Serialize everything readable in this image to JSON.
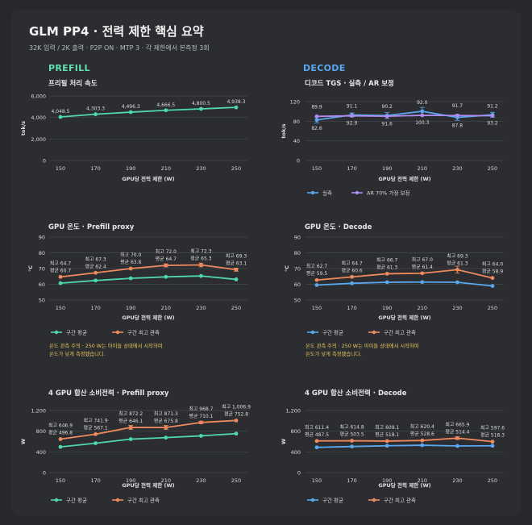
{
  "header": {
    "title": "GLM PP4 · 전력 제한 핵심 요약",
    "subtitle": "32K 입력 / 2K 출력 · P2P ON · MTP 3 · 각 제한에서 본측정 3회",
    "prefill_label": "PREFILL",
    "decode_label": "DECODE"
  },
  "colors": {
    "green": "#4fd8a8",
    "orange": "#f08a5d",
    "blue": "#5aa8f0",
    "purple": "#b08cf0",
    "note": "#e6c65a"
  },
  "chart_data": [
    {
      "type": "line",
      "panel": "prefill-speed",
      "title": "프리필 처리 속도",
      "xlabel": "GPU당 전력 제한 (W)",
      "ylabel": "tok/s",
      "x": [
        150,
        170,
        190,
        210,
        230,
        250
      ],
      "ylim": [
        0,
        6000
      ],
      "yticks": [
        0,
        2000,
        4000,
        6000
      ],
      "ytick_labels": [
        "0",
        "2,000",
        "4,000",
        "6,000"
      ],
      "series": [
        {
          "values": [
            4048.5,
            4303.3,
            4496.3,
            4666.5,
            4800.5,
            4938.3
          ],
          "labels": [
            "4,048.5",
            "4,303.3",
            "4,496.3",
            "4,666.5",
            "4,800.5",
            "4,938.3"
          ],
          "color": "green"
        }
      ],
      "legend": []
    },
    {
      "type": "line",
      "panel": "decode-tgs",
      "title": "디코드 TGS · 실측 / AR 보정",
      "xlabel": "GPU당 전력 제한 (W)",
      "ylabel": "tok/s",
      "x": [
        150,
        170,
        190,
        210,
        230,
        250
      ],
      "ylim": [
        0,
        120
      ],
      "yticks": [
        0,
        40,
        80,
        120
      ],
      "ytick_labels": [
        "0",
        "40",
        "80",
        "120"
      ],
      "series": [
        {
          "name": "실측",
          "values": [
            82.6,
            92.9,
            91.6,
            100.3,
            87.8,
            93.2
          ],
          "labels": [
            "82.6",
            "92.9",
            "91.6",
            "100.3",
            "87.8",
            "93.2"
          ],
          "color": "blue",
          "err": [
            6,
            4,
            6,
            8,
            6,
            5
          ]
        },
        {
          "name": "AR 70% 가정 보정",
          "values": [
            89.9,
            91.1,
            90.2,
            92.0,
            91.7,
            91.2
          ],
          "labels": [
            "89.9",
            "91.1",
            "90.2",
            "92.0",
            "91.7",
            "91.2"
          ],
          "color": "purple"
        }
      ],
      "legend": [
        "실측",
        "AR 70% 가정 보정"
      ]
    },
    {
      "type": "line",
      "panel": "prefill-temp",
      "title": "GPU 온도 · Prefill proxy",
      "xlabel": "GPU당 전력 제한 (W)",
      "ylabel": "°C",
      "x": [
        150,
        170,
        190,
        210,
        230,
        250
      ],
      "ylim": [
        50,
        90
      ],
      "yticks": [
        50,
        60,
        70,
        80,
        90
      ],
      "ytick_labels": [
        "50",
        "60",
        "70",
        "80",
        "90"
      ],
      "series": [
        {
          "name": "구간 평균",
          "values": [
            60.7,
            62.4,
            63.8,
            64.7,
            65.3,
            63.1
          ],
          "color": "green"
        },
        {
          "name": "구간 최고 관측",
          "values": [
            64.7,
            67.3,
            70.0,
            72.0,
            72.3,
            69.3
          ],
          "color": "orange",
          "err": [
            0,
            0,
            0,
            1,
            1.2,
            1
          ]
        }
      ],
      "annotations": [
        [
          "최고 64.7",
          "평균 60.7"
        ],
        [
          "최고 67.3",
          "평균 62.4"
        ],
        [
          "최고 70.0",
          "평균 63.8"
        ],
        [
          "최고 72.0",
          "평균 64.7"
        ],
        [
          "최고 72.3",
          "평균 65.3"
        ],
        [
          "최고 69.3",
          "평균 63.1"
        ]
      ],
      "legend": [
        "구간 평균",
        "구간 최고 관측"
      ],
      "note": [
        "온도 관측 주의 · 250 W는 아이들 상태에서 시작하여",
        "온도가 낮게 측정됐습니다."
      ]
    },
    {
      "type": "line",
      "panel": "decode-temp",
      "title": "GPU 온도 · Decode",
      "xlabel": "GPU당 전력 제한 (W)",
      "ylabel": "°C",
      "x": [
        150,
        170,
        190,
        210,
        230,
        250
      ],
      "ylim": [
        50,
        90
      ],
      "yticks": [
        50,
        60,
        70,
        80,
        90
      ],
      "ytick_labels": [
        "50",
        "60",
        "70",
        "80",
        "90"
      ],
      "series": [
        {
          "name": "구간 평균",
          "values": [
            59.5,
            60.6,
            61.3,
            61.4,
            61.3,
            58.9
          ],
          "color": "blue"
        },
        {
          "name": "구간 최고 관측",
          "values": [
            62.7,
            64.7,
            66.7,
            67.0,
            69.3,
            64.0
          ],
          "color": "orange",
          "err": [
            0,
            0,
            0,
            0,
            2.2,
            0
          ]
        }
      ],
      "annotations": [
        [
          "최고 62.7",
          "평균 59.5"
        ],
        [
          "최고 64.7",
          "평균 60.6"
        ],
        [
          "최고 66.7",
          "평균 61.3"
        ],
        [
          "최고 67.0",
          "평균 61.4"
        ],
        [
          "최고 69.3",
          "평균 61.3"
        ],
        [
          "최고 64.0",
          "평균 58.9"
        ]
      ],
      "legend": [
        "구간 평균",
        "구간 최고 관측"
      ],
      "note": [
        "온도 관측 주의 · 250 W는 아이들 상태에서 시작하여",
        "온도가 낮게 측정됐습니다."
      ]
    },
    {
      "type": "line",
      "panel": "prefill-power",
      "title": "4 GPU 합산 소비전력 · Prefill proxy",
      "xlabel": "GPU당 전력 제한 (W)",
      "ylabel": "W",
      "x": [
        150,
        170,
        190,
        210,
        230,
        250
      ],
      "ylim": [
        0,
        1200
      ],
      "yticks": [
        0,
        400,
        800,
        1200
      ],
      "ytick_labels": [
        "0",
        "400",
        "800",
        "1,200"
      ],
      "series": [
        {
          "name": "구간 평균",
          "values": [
            496.8,
            567.1,
            646.1,
            675.8,
            710.1,
            752.8
          ],
          "color": "green"
        },
        {
          "name": "구간 최고 관측",
          "values": [
            646.9,
            741.9,
            872.2,
            871.3,
            968.7,
            1006.9
          ],
          "color": "orange",
          "err": [
            0,
            0,
            40,
            40,
            25,
            0
          ]
        }
      ],
      "annotations": [
        [
          "최고 646.9",
          "평균 496.8"
        ],
        [
          "최고 741.9",
          "평균 567.1"
        ],
        [
          "최고 872.2",
          "평균 646.1"
        ],
        [
          "최고 871.3",
          "평균 675.8"
        ],
        [
          "최고 968.7",
          "평균 710.1"
        ],
        [
          "최고 1,006.9",
          "평균 752.8"
        ]
      ],
      "legend": [
        "구간 평균",
        "구간 최고 관측"
      ]
    },
    {
      "type": "line",
      "panel": "decode-power",
      "title": "4 GPU 합산 소비전력 · Decode",
      "xlabel": "GPU당 전력 제한 (W)",
      "ylabel": "W",
      "x": [
        150,
        170,
        190,
        210,
        230,
        250
      ],
      "ylim": [
        0,
        1200
      ],
      "yticks": [
        0,
        400,
        800,
        1200
      ],
      "ytick_labels": [
        "0",
        "400",
        "800",
        "1,200"
      ],
      "series": [
        {
          "name": "구간 평균",
          "values": [
            487.5,
            503.5,
            518.1,
            528.6,
            514.4,
            518.3
          ],
          "color": "blue"
        },
        {
          "name": "구간 최고 관측",
          "values": [
            611.4,
            614.8,
            609.1,
            620.4,
            665.9,
            597.6
          ],
          "color": "orange",
          "err": [
            0,
            0,
            0,
            0,
            25,
            0
          ]
        }
      ],
      "annotations": [
        [
          "최고 611.4",
          "평균 487.5"
        ],
        [
          "최고 614.8",
          "평균 503.5"
        ],
        [
          "최고 609.1",
          "평균 518.1"
        ],
        [
          "최고 620.4",
          "평균 528.6"
        ],
        [
          "최고 665.9",
          "평균 514.4"
        ],
        [
          "최고 597.6",
          "평균 518.3"
        ]
      ],
      "legend": [
        "구간 평균",
        "구간 최고 관측"
      ]
    }
  ]
}
